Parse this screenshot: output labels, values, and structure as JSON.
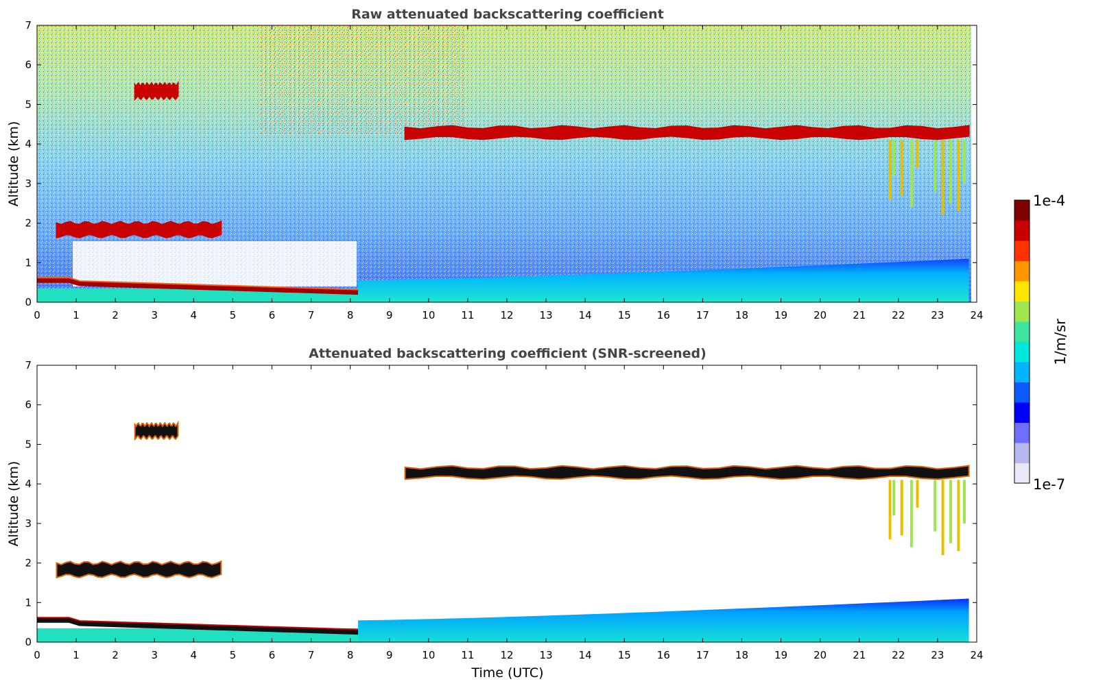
{
  "chart_data": [
    {
      "type": "heatmap",
      "title": "Raw attenuated backscattering coefficient",
      "xlabel": "",
      "ylabel": "Altitude (km)",
      "xlim": [
        0,
        24
      ],
      "ylim": [
        0,
        7
      ],
      "xticks": [
        "0",
        "1",
        "2",
        "3",
        "4",
        "5",
        "6",
        "7",
        "8",
        "9",
        "10",
        "11",
        "12",
        "13",
        "14",
        "15",
        "16",
        "17",
        "18",
        "19",
        "20",
        "21",
        "22",
        "23",
        "24"
      ],
      "yticks": [
        "0",
        "1",
        "2",
        "3",
        "4",
        "5",
        "6",
        "7"
      ],
      "screened": false,
      "features": [
        {
          "name": "cloud_layer_upper",
          "time": [
            9.4,
            23.8
          ],
          "altitude_km": [
            4.1,
            4.5
          ],
          "level": "1e-4"
        },
        {
          "name": "cloud_patch_5km",
          "time": [
            2.5,
            3.6
          ],
          "altitude_km": [
            5.1,
            5.6
          ],
          "level": "1e-4"
        },
        {
          "name": "cloud_layer_2km",
          "time": [
            0.5,
            4.7
          ],
          "altitude_km": [
            1.6,
            2.1
          ],
          "level": "1e-4"
        },
        {
          "name": "boundary_layer_top",
          "time": [
            0,
            8.2
          ],
          "altitude_km": [
            0.2,
            0.6
          ],
          "level": "1e-4"
        },
        {
          "name": "aerosol_layer",
          "time": [
            8.2,
            23.8
          ],
          "altitude_km": [
            0,
            1.1
          ],
          "level": "1e-6"
        },
        {
          "name": "virga_fallstreaks",
          "time": [
            21.7,
            23.7
          ],
          "altitude_km": [
            2.2,
            4.1
          ],
          "level": "1e-5"
        }
      ]
    },
    {
      "type": "heatmap",
      "title": "Attenuated backscattering coefficient (SNR-screened)",
      "xlabel": "Time (UTC)",
      "ylabel": "Altitude (km)",
      "xlim": [
        0,
        24
      ],
      "ylim": [
        0,
        7
      ],
      "xticks": [
        "0",
        "1",
        "2",
        "3",
        "4",
        "5",
        "6",
        "7",
        "8",
        "9",
        "10",
        "11",
        "12",
        "13",
        "14",
        "15",
        "16",
        "17",
        "18",
        "19",
        "20",
        "21",
        "22",
        "23",
        "24"
      ],
      "yticks": [
        "0",
        "1",
        "2",
        "3",
        "4",
        "5",
        "6",
        "7"
      ],
      "screened": true,
      "features": [
        {
          "name": "cloud_layer_upper",
          "time": [
            9.4,
            23.8
          ],
          "altitude_km": [
            4.1,
            4.5
          ],
          "level": "1e-4"
        },
        {
          "name": "cloud_patch_5km",
          "time": [
            2.5,
            3.6
          ],
          "altitude_km": [
            5.1,
            5.6
          ],
          "level": "1e-4"
        },
        {
          "name": "cloud_layer_2km",
          "time": [
            0.5,
            4.7
          ],
          "altitude_km": [
            1.6,
            2.1
          ],
          "level": "1e-4"
        },
        {
          "name": "boundary_layer_top",
          "time": [
            0,
            8.2
          ],
          "altitude_km": [
            0.2,
            0.6
          ],
          "level": "1e-4"
        },
        {
          "name": "aerosol_layer",
          "time": [
            8.2,
            23.8
          ],
          "altitude_km": [
            0,
            1.1
          ],
          "level": "1e-6"
        },
        {
          "name": "virga_fallstreaks",
          "time": [
            21.7,
            23.7
          ],
          "altitude_km": [
            2.2,
            4.1
          ],
          "level": "1e-5"
        }
      ]
    }
  ],
  "colorbar": {
    "label": "1/m/sr",
    "max_label": "1e-4",
    "min_label": "1e-7",
    "colors": [
      "#e8e8f8",
      "#b8b8f0",
      "#6e6eff",
      "#0000ff",
      "#0a5aff",
      "#00b4ff",
      "#00e6dc",
      "#3ce6a0",
      "#a0e650",
      "#ffe600",
      "#ff9600",
      "#ff3200",
      "#c80000",
      "#800000"
    ]
  }
}
